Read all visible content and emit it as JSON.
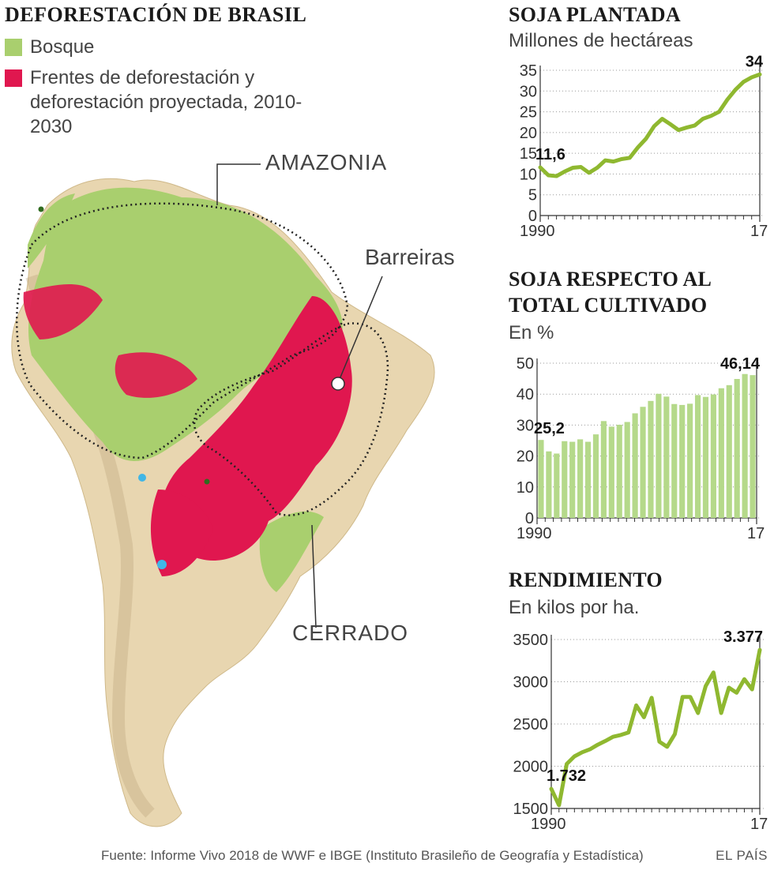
{
  "header": {
    "title": "DEFORESTACIÓN DE BRASIL"
  },
  "colors": {
    "forest": "#a9cf6e",
    "deforestation": "#e0174f",
    "land": "#e8d6b0",
    "line_green": "#8fb830",
    "bar_green": "#b5d98a"
  },
  "legend": {
    "items": [
      {
        "label": "Bosque",
        "color": "#a9cf6e"
      },
      {
        "label": "Frentes de deforestación y deforestación proyectada, 2010-2030",
        "color": "#e0174f"
      }
    ]
  },
  "map": {
    "labels": {
      "amazonia": "AMAZONIA",
      "barreiras": "Barreiras",
      "cerrado": "CERRADO"
    }
  },
  "panels": {
    "soja": {
      "title": "SOJA PLANTADA",
      "subtitle": "Millones de hectáreas"
    },
    "respecto": {
      "title_line1": "SOJA RESPECTO AL",
      "title_line2": "TOTAL CULTIVADO",
      "subtitle": "En %"
    },
    "rendimiento": {
      "title": "RENDIMIENTO",
      "subtitle": "En kilos por ha."
    }
  },
  "chart_data": [
    {
      "type": "line",
      "title": "SOJA PLANTADA",
      "ylabel": "Millones de hectáreas",
      "x": [
        1990,
        1991,
        1992,
        1993,
        1994,
        1995,
        1996,
        1997,
        1998,
        1999,
        2000,
        2001,
        2002,
        2003,
        2004,
        2005,
        2006,
        2007,
        2008,
        2009,
        2010,
        2011,
        2012,
        2013,
        2014,
        2015,
        2016,
        2017
      ],
      "values": [
        11.6,
        9.7,
        9.5,
        10.6,
        11.5,
        11.7,
        10.3,
        11.5,
        13.3,
        13.0,
        13.6,
        13.9,
        16.4,
        18.5,
        21.5,
        23.3,
        22.0,
        20.6,
        21.2,
        21.7,
        23.3,
        24.0,
        25.0,
        27.9,
        30.3,
        32.2,
        33.3,
        34.0
      ],
      "ylim": [
        0,
        35
      ],
      "yticks": [
        0,
        5,
        10,
        15,
        20,
        25,
        30,
        35
      ],
      "xtick_labels": [
        "1990",
        "17"
      ],
      "annotations": [
        {
          "x": 1990,
          "label": "11,6"
        },
        {
          "x": 2017,
          "label": "34"
        }
      ],
      "grid": "horizontal dotted"
    },
    {
      "type": "bar",
      "title": "SOJA RESPECTO AL TOTAL CULTIVADO",
      "ylabel": "En %",
      "x": [
        1990,
        1991,
        1992,
        1993,
        1994,
        1995,
        1996,
        1997,
        1998,
        1999,
        2000,
        2001,
        2002,
        2003,
        2004,
        2005,
        2006,
        2007,
        2008,
        2009,
        2010,
        2011,
        2012,
        2013,
        2014,
        2015,
        2016,
        2017
      ],
      "values": [
        25.2,
        21.5,
        20.8,
        24.8,
        24.6,
        25.4,
        24.6,
        27.0,
        31.3,
        29.5,
        30.1,
        31.0,
        33.8,
        35.9,
        37.8,
        40.1,
        39.2,
        36.8,
        36.5,
        36.9,
        39.7,
        39.1,
        39.9,
        41.9,
        42.9,
        44.9,
        46.5,
        46.14
      ],
      "ylim": [
        0,
        50
      ],
      "yticks": [
        0,
        10,
        20,
        30,
        40,
        50
      ],
      "xtick_labels": [
        "1990",
        "17"
      ],
      "annotations": [
        {
          "x": 1990,
          "label": "25,2"
        },
        {
          "x": 2017,
          "label": "46,14"
        }
      ],
      "grid": "horizontal dotted"
    },
    {
      "type": "line",
      "title": "RENDIMIENTO",
      "ylabel": "En kilos por ha.",
      "x": [
        1990,
        1991,
        1992,
        1993,
        1994,
        1995,
        1996,
        1997,
        1998,
        1999,
        2000,
        2001,
        2002,
        2003,
        2004,
        2005,
        2006,
        2007,
        2008,
        2009,
        2010,
        2011,
        2012,
        2013,
        2014,
        2015,
        2016,
        2017
      ],
      "values": [
        1732,
        1538,
        2027,
        2117,
        2165,
        2200,
        2254,
        2299,
        2349,
        2370,
        2400,
        2720,
        2580,
        2810,
        2290,
        2230,
        2380,
        2820,
        2820,
        2630,
        2950,
        3110,
        2630,
        2930,
        2870,
        3030,
        2910,
        3377
      ],
      "ylim": [
        1500,
        3500
      ],
      "yticks": [
        1500,
        2000,
        2500,
        3000,
        3500
      ],
      "xtick_labels": [
        "1990",
        "17"
      ],
      "annotations": [
        {
          "x": 1990,
          "label": "1.732"
        },
        {
          "x": 2017,
          "label": "3.377"
        }
      ],
      "grid": "horizontal dotted"
    }
  ],
  "footer": {
    "source": "Fuente: Informe Vivo 2018 de WWF e IBGE (Instituto Brasileño de Geografía y Estadística)",
    "brand": "EL PAÍS"
  }
}
